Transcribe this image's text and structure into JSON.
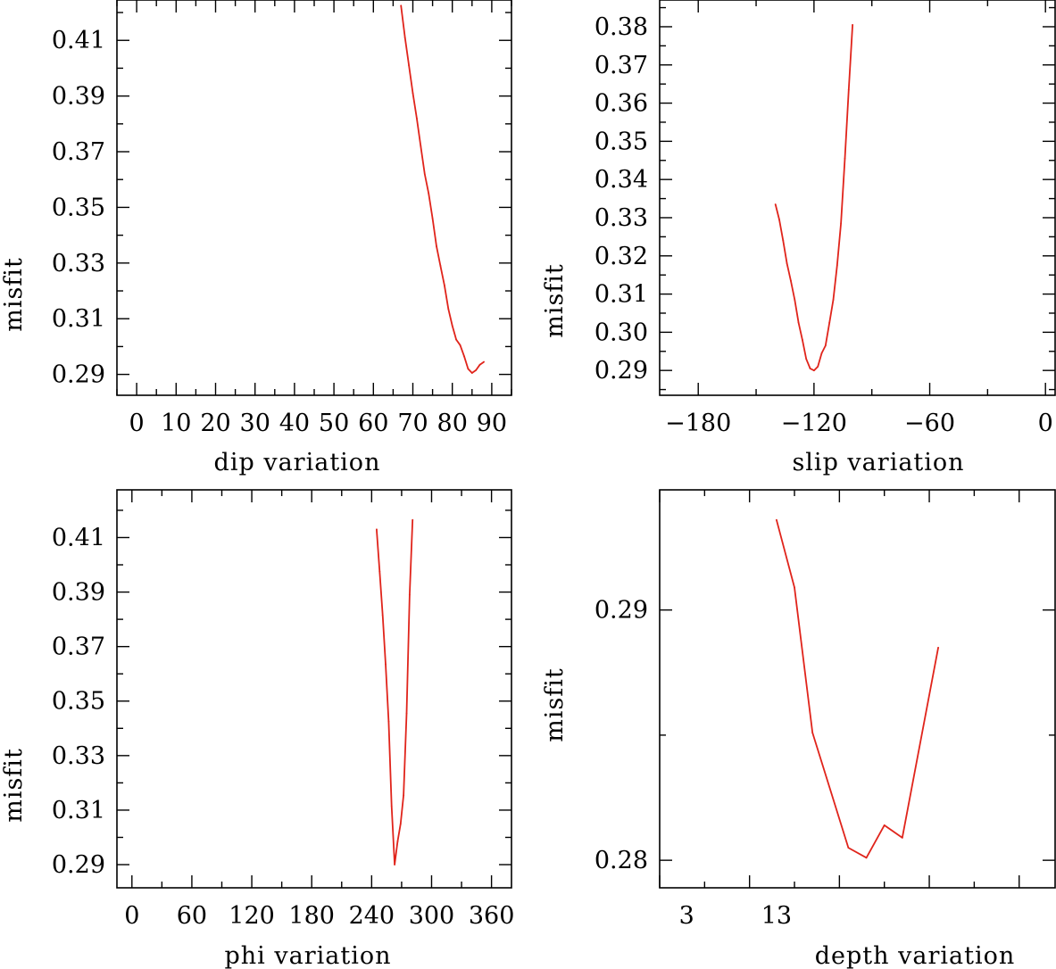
{
  "colors": {
    "line": "#e0241b",
    "axis": "#000000"
  },
  "chart_data": [
    {
      "type": "line",
      "xlabel": "dip    variation",
      "ylabel": "misfit",
      "xlim": [
        -5,
        95
      ],
      "ylim": [
        0.2825,
        0.4245
      ],
      "xticks": [
        0,
        10,
        20,
        30,
        40,
        50,
        60,
        70,
        80,
        90
      ],
      "xtick_labels": [
        "0",
        "10",
        "20",
        "30",
        "40",
        "50",
        "60",
        "70",
        "80",
        "90"
      ],
      "yticks": [
        0.29,
        0.31,
        0.33,
        0.35,
        0.37,
        0.39,
        0.41
      ],
      "ytick_labels": [
        "0.29",
        "0.31",
        "0.33",
        "0.35",
        "0.37",
        "0.39",
        "0.41"
      ],
      "series": [
        {
          "x": [
            67,
            68,
            69,
            70,
            71,
            72,
            73,
            74,
            75,
            76,
            77,
            78,
            79,
            80,
            81,
            82,
            83,
            84,
            85,
            86,
            87,
            88
          ],
          "y": [
            0.4225,
            0.411,
            0.401,
            0.391,
            0.382,
            0.372,
            0.362,
            0.355,
            0.346,
            0.336,
            0.329,
            0.322,
            0.3135,
            0.3075,
            0.3025,
            0.3005,
            0.2965,
            0.292,
            0.2905,
            0.2915,
            0.2935,
            0.2945
          ]
        }
      ]
    },
    {
      "type": "line",
      "xlabel": "slip    variation",
      "ylabel": "misfit",
      "xlim": [
        -200,
        5
      ],
      "ylim": [
        0.2835,
        0.387
      ],
      "xticks": [
        -180,
        -120,
        -60,
        0
      ],
      "xtick_labels": [
        "−180",
        "−120",
        "−60",
        "0"
      ],
      "yticks": [
        0.29,
        0.3,
        0.31,
        0.32,
        0.33,
        0.34,
        0.35,
        0.36,
        0.37,
        0.38
      ],
      "ytick_labels": [
        "0.29",
        "0.30",
        "0.31",
        "0.32",
        "0.33",
        "0.34",
        "0.35",
        "0.36",
        "0.37",
        "0.38"
      ],
      "series": [
        {
          "x": [
            -140,
            -138,
            -136,
            -134,
            -132,
            -130,
            -128,
            -126,
            -124,
            -122,
            -120,
            -118,
            -116,
            -114,
            -112,
            -110,
            -108,
            -106,
            -104,
            -102,
            -100
          ],
          "y": [
            0.3335,
            0.3295,
            0.324,
            0.318,
            0.3135,
            0.3085,
            0.3025,
            0.298,
            0.293,
            0.2905,
            0.29,
            0.291,
            0.2945,
            0.2965,
            0.3025,
            0.3085,
            0.3175,
            0.3285,
            0.3455,
            0.3635,
            0.3805
          ]
        }
      ]
    },
    {
      "type": "line",
      "xlabel": "phi    variation",
      "ylabel": "misfit",
      "xlim": [
        -15,
        380
      ],
      "ylim": [
        0.2815,
        0.4275
      ],
      "xticks": [
        0,
        60,
        120,
        180,
        240,
        300,
        360
      ],
      "xtick_labels": [
        "0",
        "60",
        "120",
        "180",
        "240",
        "300",
        "360"
      ],
      "yticks": [
        0.29,
        0.31,
        0.33,
        0.35,
        0.37,
        0.39,
        0.41
      ],
      "ytick_labels": [
        "0.29",
        "0.31",
        "0.33",
        "0.35",
        "0.37",
        "0.39",
        "0.41"
      ],
      "series": [
        {
          "x": [
            245,
            248,
            251,
            254,
            257,
            260,
            263,
            266,
            269,
            272,
            275,
            278,
            281
          ],
          "y": [
            0.413,
            0.3975,
            0.3815,
            0.3635,
            0.3425,
            0.3115,
            0.29,
            0.2985,
            0.305,
            0.3155,
            0.3455,
            0.389,
            0.4165
          ]
        }
      ]
    },
    {
      "type": "line",
      "xlabel": "depth    variation",
      "ylabel": "misfit",
      "xlim": [
        0,
        44
      ],
      "ylim": [
        0.2789,
        0.2948
      ],
      "xticks": [
        3,
        13
      ],
      "xtick_labels": [
        "3",
        "13"
      ],
      "yticks": [
        0.28,
        0.29
      ],
      "ytick_labels": [
        "0.28",
        "0.29"
      ],
      "series": [
        {
          "x": [
            13,
            15,
            17,
            21,
            23,
            25,
            27,
            31
          ],
          "y": [
            0.2936,
            0.2909,
            0.2851,
            0.2805,
            0.2801,
            0.2814,
            0.2809,
            0.2885
          ]
        }
      ]
    }
  ]
}
